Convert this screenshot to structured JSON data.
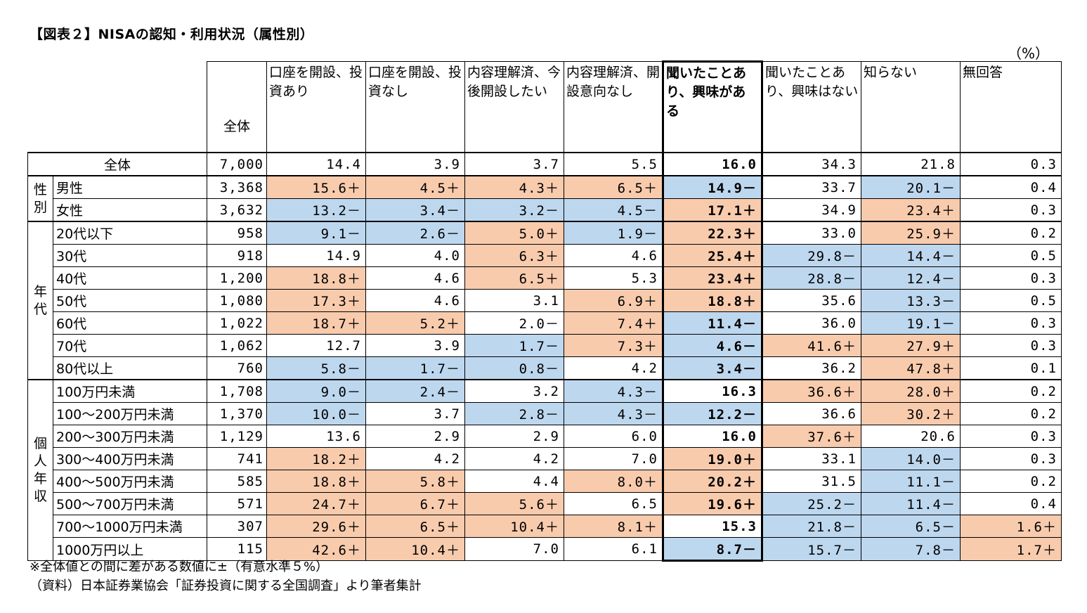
{
  "title": "【図表２】NISAの認知・利用状況（属性別）",
  "unit": "（%）",
  "headers": {
    "total": "全体",
    "cols": [
      "口座を開設、投資あり",
      "口座を開設、投資なし",
      "内容理解済、今後開設したい",
      "内容理解済、開設意向なし",
      "聞いたことあり、興味がある",
      "聞いたことあり、興味はない",
      "知らない",
      "無回答"
    ]
  },
  "colors": {
    "significant_high": "#f8cbad",
    "significant_low": "#bdd7ee"
  },
  "all_row": {
    "label": "全体",
    "n": "7,000",
    "values": [
      "14.4",
      "3.9",
      "3.7",
      "5.5",
      "16.0",
      "34.3",
      "21.8",
      "0.3"
    ],
    "flags": [
      "",
      "",
      "",
      "",
      "",
      "",
      "",
      ""
    ]
  },
  "groups": [
    {
      "label": "性別",
      "rows": [
        {
          "label": "男性",
          "n": "3,368",
          "values": [
            "15.6＋",
            "4.5＋",
            "4.3＋",
            "6.5＋",
            "14.9－",
            "33.7",
            "20.1－",
            "0.4"
          ],
          "flags": [
            "p",
            "p",
            "p",
            "p",
            "n",
            "",
            "n",
            ""
          ]
        },
        {
          "label": "女性",
          "n": "3,632",
          "values": [
            "13.2－",
            "3.4－",
            "3.2－",
            "4.5－",
            "17.1＋",
            "34.9",
            "23.4＋",
            "0.3"
          ],
          "flags": [
            "n",
            "n",
            "n",
            "n",
            "p",
            "",
            "p",
            ""
          ]
        }
      ]
    },
    {
      "label": "年代",
      "rows": [
        {
          "label": "20代以下",
          "n": "958",
          "values": [
            "9.1－",
            "2.6－",
            "5.0＋",
            "1.9－",
            "22.3＋",
            "33.0",
            "25.9＋",
            "0.2"
          ],
          "flags": [
            "n",
            "n",
            "p",
            "n",
            "p",
            "",
            "p",
            ""
          ]
        },
        {
          "label": "30代",
          "n": "918",
          "values": [
            "14.9",
            "4.0",
            "6.3＋",
            "4.6",
            "25.4＋",
            "29.8－",
            "14.4－",
            "0.5"
          ],
          "flags": [
            "",
            "",
            "p",
            "",
            "p",
            "n",
            "n",
            ""
          ]
        },
        {
          "label": "40代",
          "n": "1,200",
          "values": [
            "18.8＋",
            "4.6",
            "6.5＋",
            "5.3",
            "23.4＋",
            "28.8－",
            "12.4－",
            "0.3"
          ],
          "flags": [
            "p",
            "",
            "p",
            "",
            "p",
            "n",
            "n",
            ""
          ]
        },
        {
          "label": "50代",
          "n": "1,080",
          "values": [
            "17.3＋",
            "4.6",
            "3.1",
            "6.9＋",
            "18.8＋",
            "35.6",
            "13.3－",
            "0.5"
          ],
          "flags": [
            "p",
            "",
            "",
            "p",
            "p",
            "",
            "n",
            ""
          ]
        },
        {
          "label": "60代",
          "n": "1,022",
          "values": [
            "18.7＋",
            "5.2＋",
            "2.0－",
            "7.4＋",
            "11.4－",
            "36.0",
            "19.1－",
            "0.3"
          ],
          "flags": [
            "p",
            "p",
            "",
            "p",
            "n",
            "",
            "n",
            ""
          ]
        },
        {
          "label": "70代",
          "n": "1,062",
          "values": [
            "12.7",
            "3.9",
            "1.7－",
            "7.3＋",
            "4.6－",
            "41.6＋",
            "27.9＋",
            "0.3"
          ],
          "flags": [
            "",
            "",
            "n",
            "p",
            "n",
            "p",
            "p",
            ""
          ]
        },
        {
          "label": "80代以上",
          "n": "760",
          "values": [
            "5.8－",
            "1.7－",
            "0.8－",
            "4.2",
            "3.4－",
            "36.2",
            "47.8＋",
            "0.1"
          ],
          "flags": [
            "n",
            "n",
            "n",
            "",
            "n",
            "",
            "p",
            ""
          ]
        }
      ]
    },
    {
      "label": "個人年収",
      "rows": [
        {
          "label": "100万円未満",
          "n": "1,708",
          "values": [
            "9.0－",
            "2.4－",
            "3.2",
            "4.3－",
            "16.3",
            "36.6＋",
            "28.0＋",
            "0.2"
          ],
          "flags": [
            "n",
            "n",
            "",
            "n",
            "",
            "p",
            "p",
            ""
          ]
        },
        {
          "label": "100～200万円未満",
          "n": "1,370",
          "values": [
            "10.0－",
            "3.7",
            "2.8－",
            "4.3－",
            "12.2－",
            "36.6",
            "30.2＋",
            "0.2"
          ],
          "flags": [
            "n",
            "",
            "n",
            "n",
            "n",
            "",
            "p",
            ""
          ]
        },
        {
          "label": "200～300万円未満",
          "n": "1,129",
          "values": [
            "13.6",
            "2.9",
            "2.9",
            "6.0",
            "16.0",
            "37.6＋",
            "20.6",
            "0.3"
          ],
          "flags": [
            "",
            "",
            "",
            "",
            "",
            "p",
            "",
            ""
          ]
        },
        {
          "label": "300～400万円未満",
          "n": "741",
          "values": [
            "18.2＋",
            "4.2",
            "4.2",
            "7.0",
            "19.0＋",
            "33.1",
            "14.0－",
            "0.3"
          ],
          "flags": [
            "p",
            "",
            "",
            "",
            "p",
            "",
            "n",
            ""
          ]
        },
        {
          "label": "400～500万円未満",
          "n": "585",
          "values": [
            "18.8＋",
            "5.8＋",
            "4.4",
            "8.0＋",
            "20.2＋",
            "31.5",
            "11.1－",
            "0.2"
          ],
          "flags": [
            "p",
            "p",
            "",
            "p",
            "p",
            "",
            "n",
            ""
          ]
        },
        {
          "label": "500～700万円未満",
          "n": "571",
          "values": [
            "24.7＋",
            "6.7＋",
            "5.6＋",
            "6.5",
            "19.6＋",
            "25.2－",
            "11.4－",
            "0.4"
          ],
          "flags": [
            "p",
            "p",
            "p",
            "",
            "p",
            "n",
            "n",
            ""
          ]
        },
        {
          "label": "700～1000万円未満",
          "n": "307",
          "values": [
            "29.6＋",
            "6.5＋",
            "10.4＋",
            "8.1＋",
            "15.3",
            "21.8－",
            "6.5－",
            "1.6＋"
          ],
          "flags": [
            "p",
            "p",
            "p",
            "p",
            "",
            "n",
            "n",
            "p"
          ]
        },
        {
          "label": "1000万円以上",
          "n": "115",
          "values": [
            "42.6＋",
            "10.4＋",
            "7.0",
            "6.1",
            "8.7－",
            "15.7－",
            "7.8－",
            "1.7＋"
          ],
          "flags": [
            "p",
            "p",
            "",
            "",
            "n",
            "n",
            "n",
            "p"
          ]
        }
      ]
    }
  ],
  "notes": [
    "※全体値との間に差がある数値に±（有意水準５%）",
    "（資料）日本証券業協会「証券投資に関する全国調査」より筆者集計"
  ]
}
